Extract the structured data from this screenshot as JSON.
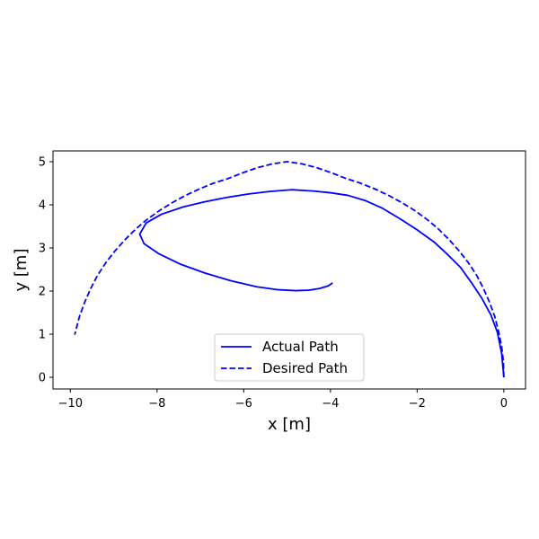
{
  "chart_data": {
    "type": "line",
    "title": "",
    "xlabel": "x [m]",
    "ylabel": "y [m]",
    "xlim": [
      -10.4,
      0.5
    ],
    "ylim": [
      -0.27,
      5.25
    ],
    "xticks": [
      -10,
      -8,
      -6,
      -4,
      -2,
      0
    ],
    "yticks": [
      0,
      1,
      2,
      3,
      4,
      5
    ],
    "xtick_labels": [
      "−10",
      "−8",
      "−6",
      "−4",
      "−2",
      "0"
    ],
    "ytick_labels": [
      "0",
      "1",
      "2",
      "3",
      "4",
      "5"
    ],
    "grid": false,
    "legend_position": "lower-center",
    "series": [
      {
        "name": "Actual Path",
        "color": "#0000ff",
        "style": "solid",
        "x": [
          0.0,
          -0.05,
          -0.15,
          -0.3,
          -0.5,
          -0.75,
          -1.0,
          -1.3,
          -1.6,
          -2.0,
          -2.4,
          -2.8,
          -3.2,
          -3.6,
          -4.0,
          -4.4,
          -4.9,
          -5.4,
          -5.9,
          -6.4,
          -6.9,
          -7.4,
          -7.9,
          -8.25,
          -8.4,
          -8.3,
          -7.95,
          -7.45,
          -6.9,
          -6.3,
          -5.7,
          -5.2,
          -4.8,
          -4.5,
          -4.25,
          -4.05,
          -3.95
        ],
        "y": [
          0.0,
          0.55,
          1.05,
          1.45,
          1.82,
          2.2,
          2.55,
          2.85,
          3.13,
          3.42,
          3.68,
          3.92,
          4.1,
          4.22,
          4.28,
          4.32,
          4.35,
          4.31,
          4.25,
          4.17,
          4.07,
          3.95,
          3.78,
          3.58,
          3.32,
          3.1,
          2.86,
          2.62,
          2.42,
          2.24,
          2.1,
          2.03,
          2.01,
          2.02,
          2.06,
          2.12,
          2.19
        ]
      },
      {
        "name": "Desired Path",
        "color": "#0000ff",
        "style": "dashed",
        "x": [
          0.0,
          -0.01,
          -0.05,
          -0.12,
          -0.21,
          -0.33,
          -0.47,
          -0.63,
          -0.82,
          -1.03,
          -1.26,
          -1.51,
          -1.77,
          -2.06,
          -2.35,
          -2.66,
          -2.98,
          -3.3,
          -3.64,
          -3.97,
          -4.31,
          -4.66,
          -5.0,
          -5.34,
          -5.69,
          -6.03,
          -6.36,
          -6.7,
          -7.02,
          -7.34,
          -7.65,
          -7.94,
          -8.23,
          -8.49,
          -8.74,
          -8.97,
          -9.18,
          -9.37,
          -9.53,
          -9.67,
          -9.79,
          -9.88,
          -9.9
        ],
        "y": [
          0.0,
          0.36,
          0.71,
          1.06,
          1.41,
          1.74,
          2.06,
          2.37,
          2.66,
          2.93,
          3.19,
          3.44,
          3.66,
          3.87,
          4.05,
          4.22,
          4.37,
          4.5,
          4.61,
          4.74,
          4.86,
          4.95,
          5.0,
          4.95,
          4.86,
          4.74,
          4.61,
          4.5,
          4.37,
          4.22,
          4.05,
          3.87,
          3.66,
          3.44,
          3.19,
          2.93,
          2.66,
          2.37,
          2.06,
          1.74,
          1.41,
          1.06,
          0.99
        ]
      }
    ]
  }
}
